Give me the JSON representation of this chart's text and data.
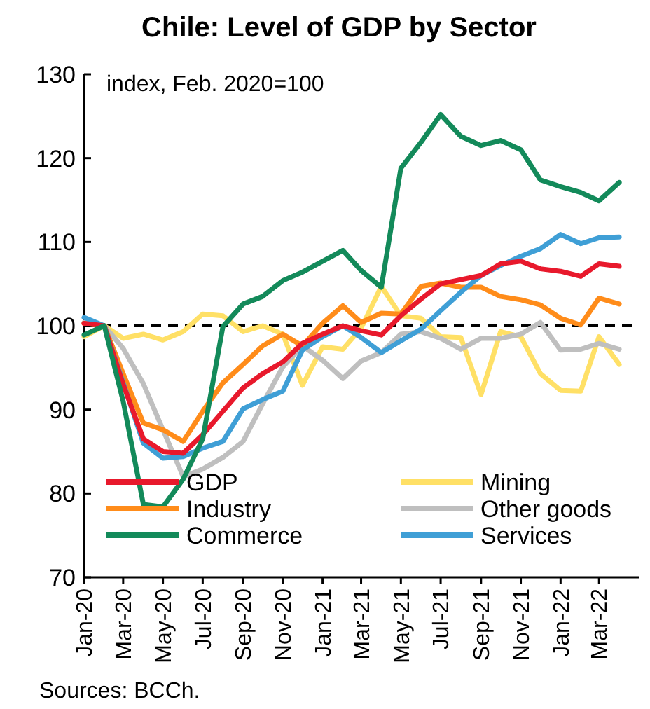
{
  "chart_data": {
    "type": "line",
    "title": "Chile: Level of GDP by Sector",
    "ylabel": "index, Feb. 2020=100",
    "annotations": [
      "Sources: BCCh."
    ],
    "x": [
      "2020-01",
      "2020-02",
      "2020-03",
      "2020-04",
      "2020-05",
      "2020-06",
      "2020-07",
      "2020-08",
      "2020-09",
      "2020-10",
      "2020-11",
      "2020-12",
      "2021-01",
      "2021-02",
      "2021-03",
      "2021-04",
      "2021-05",
      "2021-06",
      "2021-07",
      "2021-08",
      "2021-09",
      "2021-10",
      "2021-11",
      "2021-12",
      "2022-01",
      "2022-02",
      "2022-03",
      "2022-04"
    ],
    "xlim": [
      "2020-01",
      "2022-05"
    ],
    "xticks": [
      {
        "value": "2020-01",
        "label": "Jan-20"
      },
      {
        "value": "2020-03",
        "label": "Mar-20"
      },
      {
        "value": "2020-05",
        "label": "May-20"
      },
      {
        "value": "2020-07",
        "label": "Jul-20"
      },
      {
        "value": "2020-09",
        "label": "Sep-20"
      },
      {
        "value": "2020-11",
        "label": "Nov-20"
      },
      {
        "value": "2021-01",
        "label": "Jan-21"
      },
      {
        "value": "2021-03",
        "label": "Mar-21"
      },
      {
        "value": "2021-05",
        "label": "May-21"
      },
      {
        "value": "2021-07",
        "label": "Jul-21"
      },
      {
        "value": "2021-09",
        "label": "Sep-21"
      },
      {
        "value": "2021-11",
        "label": "Nov-21"
      },
      {
        "value": "2022-01",
        "label": "Jan-22"
      },
      {
        "value": "2022-03",
        "label": "Mar-22"
      }
    ],
    "ylim": [
      70,
      130
    ],
    "yticks": [
      70,
      80,
      90,
      100,
      110,
      120,
      130
    ],
    "grid": false,
    "legend": "bottom",
    "marker": "none",
    "line_style": "solid",
    "ref_lines": [
      {
        "axis": "y",
        "value": 100,
        "color": "#000000",
        "line_style": "dashed"
      }
    ],
    "series": [
      {
        "name": "Mining",
        "color": "#ffe066",
        "values": [
          98.7,
          100,
          98.5,
          99,
          98.3,
          99.3,
          101.4,
          101.2,
          99.3,
          100,
          99,
          92.9,
          97.5,
          97.2,
          99.7,
          104.7,
          101.2,
          100.9,
          98.7,
          98.6,
          91.8,
          99.3,
          98.7,
          94.3,
          92.3,
          92.2,
          98.7,
          95.4
        ]
      },
      {
        "name": "Other goods",
        "color": "#bfbfbf",
        "values": [
          100.4,
          100,
          97.3,
          93.1,
          87.6,
          82,
          82.9,
          84.3,
          86.2,
          90.7,
          95.1,
          97.6,
          95.9,
          93.7,
          95.8,
          96.8,
          99,
          99.3,
          98.5,
          97.2,
          98.5,
          98.5,
          99,
          100.4,
          97.1,
          97.2,
          97.9,
          97.2
        ]
      },
      {
        "name": "Industry",
        "color": "#ff8c1a",
        "values": [
          100.3,
          100,
          94.3,
          88.4,
          87.6,
          86.2,
          89.8,
          93.2,
          95.4,
          97.6,
          99,
          97.6,
          100.3,
          102.4,
          100.4,
          101.5,
          101.4,
          104.7,
          105.1,
          104.6,
          104.6,
          103.5,
          103.1,
          102.5,
          100.9,
          100.1,
          103.3,
          102.6
        ]
      },
      {
        "name": "Services",
        "color": "#3f9fd6",
        "values": [
          101,
          100,
          93.2,
          86,
          84.2,
          84.4,
          85.4,
          86.2,
          90.1,
          91.2,
          92.2,
          97.1,
          98.7,
          100,
          98.6,
          96.8,
          98.2,
          99.6,
          101.8,
          104,
          106,
          107.2,
          108.3,
          109.2,
          110.9,
          109.8,
          110.5,
          110.6
        ]
      },
      {
        "name": "GDP",
        "color": "#e8192c",
        "values": [
          100.3,
          100,
          93,
          86.5,
          85,
          84.8,
          87,
          89.8,
          92.6,
          94.3,
          95.7,
          97.9,
          99,
          100,
          99.4,
          98.9,
          101.2,
          103.2,
          105,
          105.5,
          106,
          107.4,
          107.7,
          106.8,
          106.5,
          105.9,
          107.4,
          107.1
        ]
      },
      {
        "name": "Commerce",
        "color": "#138a5a",
        "values": [
          98.9,
          100,
          91,
          78.7,
          78.4,
          81.7,
          86.5,
          99.9,
          102.6,
          103.5,
          105.4,
          106.4,
          107.7,
          109,
          106.6,
          104.6,
          118.8,
          121.9,
          125.2,
          122.6,
          121.5,
          122.1,
          121,
          117.4,
          116.6,
          115.9,
          114.9,
          117.1
        ]
      }
    ]
  }
}
